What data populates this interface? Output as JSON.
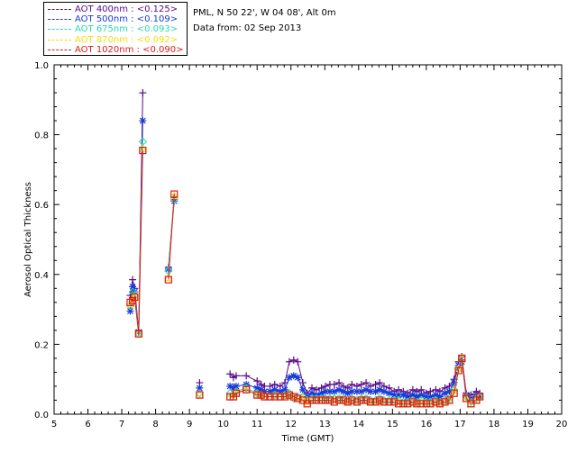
{
  "info": {
    "site": "PML, N 50 22', W 04 08', Alt 0m",
    "date_line": "Data from: 02 Sep 2013"
  },
  "chart_data": {
    "type": "scatter",
    "title": "",
    "xlabel": "Time (GMT)",
    "ylabel": "Aerosol Optical Thickness",
    "xlim": [
      5,
      20
    ],
    "ylim": [
      0,
      1.0
    ],
    "x_ticks": [
      "5",
      "6",
      "7",
      "8",
      "9",
      "10",
      "11",
      "12",
      "13",
      "14",
      "15",
      "16",
      "17",
      "18",
      "19",
      "20"
    ],
    "y_ticks": [
      "0.0",
      "0.2",
      "0.4",
      "0.6",
      "0.8",
      "1.0"
    ],
    "legend_position": "top-left",
    "series": [
      {
        "name": "AOT  400nm",
        "mean": "<0.125>",
        "color": "#5a0a8a",
        "marker": "plus",
        "x": [
          7.25,
          7.32,
          7.38,
          7.5,
          7.62,
          8.38,
          8.55,
          9.3,
          10.2,
          10.3,
          10.38,
          10.68,
          11.0,
          11.12,
          11.22,
          11.38,
          11.52,
          11.68,
          11.82,
          11.95,
          12.08,
          12.2,
          12.35,
          12.48,
          12.62,
          12.75,
          12.9,
          13.02,
          13.15,
          13.28,
          13.42,
          13.55,
          13.68,
          13.8,
          13.95,
          14.08,
          14.22,
          14.35,
          14.5,
          14.62,
          14.75,
          14.9,
          15.05,
          15.18,
          15.32,
          15.45,
          15.6,
          15.72,
          15.85,
          16.0,
          16.12,
          16.28,
          16.4,
          16.55,
          16.68,
          16.82,
          16.95,
          17.05,
          17.18,
          17.32,
          17.48,
          17.58
        ],
        "values": [
          0.34,
          0.385,
          0.36,
          0.24,
          0.92,
          0.42,
          0.62,
          0.09,
          0.115,
          0.105,
          0.11,
          0.11,
          0.095,
          0.085,
          0.08,
          0.08,
          0.085,
          0.08,
          0.09,
          0.15,
          0.155,
          0.15,
          0.09,
          0.06,
          0.075,
          0.07,
          0.075,
          0.08,
          0.085,
          0.085,
          0.09,
          0.08,
          0.075,
          0.085,
          0.08,
          0.085,
          0.09,
          0.08,
          0.085,
          0.09,
          0.08,
          0.075,
          0.065,
          0.07,
          0.065,
          0.06,
          0.07,
          0.065,
          0.07,
          0.06,
          0.065,
          0.07,
          0.065,
          0.075,
          0.08,
          0.1,
          0.15,
          0.165,
          0.06,
          0.055,
          0.065,
          0.06
        ]
      },
      {
        "name": "AOT  500nm",
        "mean": "<0.109>",
        "color": "#1a3ad8",
        "marker": "star",
        "x": [
          7.25,
          7.32,
          7.38,
          7.5,
          7.62,
          8.38,
          8.55,
          9.3,
          10.2,
          10.3,
          10.38,
          10.68,
          11.0,
          11.12,
          11.22,
          11.38,
          11.52,
          11.68,
          11.82,
          11.95,
          12.08,
          12.2,
          12.35,
          12.48,
          12.62,
          12.75,
          12.9,
          13.02,
          13.15,
          13.28,
          13.42,
          13.55,
          13.68,
          13.8,
          13.95,
          14.08,
          14.22,
          14.35,
          14.5,
          14.62,
          14.75,
          14.9,
          15.05,
          15.18,
          15.32,
          15.45,
          15.6,
          15.72,
          15.85,
          16.0,
          16.12,
          16.28,
          16.4,
          16.55,
          16.68,
          16.82,
          16.95,
          17.05,
          17.18,
          17.32,
          17.48,
          17.58
        ],
        "values": [
          0.295,
          0.365,
          0.35,
          0.235,
          0.84,
          0.415,
          0.61,
          0.075,
          0.08,
          0.075,
          0.08,
          0.085,
          0.075,
          0.07,
          0.065,
          0.065,
          0.07,
          0.065,
          0.07,
          0.105,
          0.11,
          0.105,
          0.07,
          0.05,
          0.06,
          0.055,
          0.06,
          0.065,
          0.065,
          0.065,
          0.07,
          0.065,
          0.06,
          0.065,
          0.065,
          0.065,
          0.07,
          0.065,
          0.065,
          0.07,
          0.065,
          0.06,
          0.055,
          0.055,
          0.055,
          0.05,
          0.055,
          0.05,
          0.055,
          0.05,
          0.05,
          0.055,
          0.05,
          0.06,
          0.065,
          0.09,
          0.14,
          0.15,
          0.055,
          0.045,
          0.055,
          0.05
        ]
      },
      {
        "name": "AOT  675nm",
        "mean": "<0.093>",
        "color": "#2ad8b0",
        "marker": "diamond",
        "x": [
          7.25,
          7.32,
          7.38,
          7.5,
          7.62,
          8.38,
          8.55,
          9.3,
          10.2,
          10.3,
          10.38,
          10.68,
          11.0,
          11.12,
          11.22,
          11.38,
          11.52,
          11.68,
          11.82,
          11.95,
          12.08,
          12.2,
          12.35,
          12.48,
          12.62,
          12.75,
          12.9,
          13.02,
          13.15,
          13.28,
          13.42,
          13.55,
          13.68,
          13.8,
          13.95,
          14.08,
          14.22,
          14.35,
          14.5,
          14.62,
          14.75,
          14.9,
          15.05,
          15.18,
          15.32,
          15.45,
          15.6,
          15.72,
          15.85,
          16.0,
          16.12,
          16.28,
          16.4,
          16.55,
          16.68,
          16.82,
          16.95,
          17.05,
          17.18,
          17.32,
          17.48,
          17.58
        ],
        "values": [
          0.31,
          0.35,
          0.34,
          0.23,
          0.78,
          0.41,
          0.615,
          0.06,
          0.06,
          0.055,
          0.065,
          0.075,
          0.06,
          0.055,
          0.05,
          0.05,
          0.055,
          0.05,
          0.055,
          0.06,
          0.045,
          0.05,
          0.05,
          0.04,
          0.045,
          0.045,
          0.045,
          0.045,
          0.045,
          0.045,
          0.045,
          0.045,
          0.04,
          0.045,
          0.04,
          0.045,
          0.045,
          0.04,
          0.04,
          0.045,
          0.04,
          0.04,
          0.04,
          0.04,
          0.035,
          0.035,
          0.04,
          0.035,
          0.04,
          0.035,
          0.035,
          0.04,
          0.035,
          0.04,
          0.045,
          0.07,
          0.13,
          0.155,
          0.05,
          0.035,
          0.045,
          0.05
        ]
      },
      {
        "name": "AOT  870nm",
        "mean": "<0.092>",
        "color": "#f2dc10",
        "marker": "triangle",
        "x": [
          7.25,
          7.32,
          7.38,
          7.5,
          7.62,
          8.38,
          8.55,
          9.3,
          10.2,
          10.3,
          10.38,
          10.68,
          11.0,
          11.12,
          11.22,
          11.38,
          11.52,
          11.68,
          11.82,
          11.95,
          12.08,
          12.2,
          12.35,
          12.48,
          12.62,
          12.75,
          12.9,
          13.02,
          13.15,
          13.28,
          13.42,
          13.55,
          13.68,
          13.8,
          13.95,
          14.08,
          14.22,
          14.35,
          14.5,
          14.62,
          14.75,
          14.9,
          15.05,
          15.18,
          15.32,
          15.45,
          15.6,
          15.72,
          15.85,
          16.0,
          16.12,
          16.28,
          16.4,
          16.55,
          16.68,
          16.82,
          16.95,
          17.05,
          17.18,
          17.32,
          17.48,
          17.58
        ],
        "values": [
          0.315,
          0.33,
          0.335,
          0.23,
          0.76,
          0.39,
          0.625,
          0.055,
          0.05,
          0.05,
          0.06,
          0.07,
          0.055,
          0.055,
          0.05,
          0.05,
          0.05,
          0.05,
          0.05,
          0.055,
          0.05,
          0.045,
          0.045,
          0.035,
          0.04,
          0.04,
          0.04,
          0.04,
          0.04,
          0.04,
          0.04,
          0.04,
          0.035,
          0.04,
          0.035,
          0.04,
          0.04,
          0.035,
          0.035,
          0.04,
          0.035,
          0.035,
          0.035,
          0.035,
          0.03,
          0.03,
          0.035,
          0.03,
          0.035,
          0.03,
          0.03,
          0.035,
          0.03,
          0.035,
          0.04,
          0.065,
          0.13,
          0.16,
          0.045,
          0.03,
          0.04,
          0.05
        ]
      },
      {
        "name": "AOT 1020nm",
        "mean": "<0.090>",
        "color": "#d81c1c",
        "marker": "square",
        "x": [
          7.25,
          7.32,
          7.38,
          7.5,
          7.62,
          8.38,
          8.55,
          9.3,
          10.2,
          10.3,
          10.38,
          10.68,
          11.0,
          11.12,
          11.22,
          11.38,
          11.52,
          11.68,
          11.82,
          11.95,
          12.08,
          12.2,
          12.35,
          12.48,
          12.62,
          12.75,
          12.9,
          13.02,
          13.15,
          13.28,
          13.42,
          13.55,
          13.68,
          13.8,
          13.95,
          14.08,
          14.22,
          14.35,
          14.5,
          14.62,
          14.75,
          14.9,
          15.05,
          15.18,
          15.32,
          15.45,
          15.6,
          15.72,
          15.85,
          16.0,
          16.12,
          16.28,
          16.4,
          16.55,
          16.68,
          16.82,
          16.95,
          17.05,
          17.18,
          17.32,
          17.48,
          17.58
        ],
        "values": [
          0.32,
          0.325,
          0.335,
          0.23,
          0.755,
          0.385,
          0.63,
          0.055,
          0.05,
          0.05,
          0.06,
          0.07,
          0.055,
          0.055,
          0.05,
          0.05,
          0.05,
          0.05,
          0.05,
          0.055,
          0.05,
          0.045,
          0.04,
          0.03,
          0.04,
          0.04,
          0.04,
          0.04,
          0.04,
          0.035,
          0.04,
          0.04,
          0.035,
          0.04,
          0.035,
          0.04,
          0.04,
          0.035,
          0.035,
          0.04,
          0.035,
          0.035,
          0.035,
          0.03,
          0.03,
          0.03,
          0.035,
          0.03,
          0.03,
          0.03,
          0.03,
          0.035,
          0.03,
          0.035,
          0.04,
          0.06,
          0.125,
          0.16,
          0.045,
          0.03,
          0.04,
          0.05
        ]
      }
    ]
  }
}
